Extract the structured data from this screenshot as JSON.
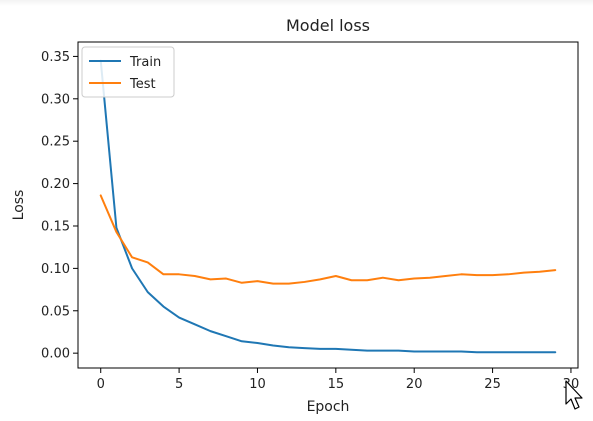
{
  "chart_data": {
    "type": "line",
    "title": "Model loss",
    "xlabel": "Epoch",
    "ylabel": "Loss",
    "xlim": [
      -1.45,
      30.45
    ],
    "ylim": [
      -0.0175,
      0.367
    ],
    "xticks": [
      0,
      5,
      10,
      15,
      20,
      25,
      30
    ],
    "xtick_labels": [
      "0",
      "5",
      "10",
      "15",
      "20",
      "25",
      "30"
    ],
    "yticks": [
      0.0,
      0.05,
      0.1,
      0.15,
      0.2,
      0.25,
      0.3,
      0.35
    ],
    "ytick_labels": [
      "0.00",
      "0.05",
      "0.10",
      "0.15",
      "0.20",
      "0.25",
      "0.30",
      "0.35"
    ],
    "grid": false,
    "legend_position": "top-left",
    "x": [
      0,
      1,
      2,
      3,
      4,
      5,
      6,
      7,
      8,
      9,
      10,
      11,
      12,
      13,
      14,
      15,
      16,
      17,
      18,
      19,
      20,
      21,
      22,
      23,
      24,
      25,
      26,
      27,
      28,
      29
    ],
    "series": [
      {
        "name": "Train",
        "color": "#1f77b4",
        "values": [
          0.345,
          0.148,
          0.1,
          0.072,
          0.055,
          0.042,
          0.034,
          0.026,
          0.02,
          0.014,
          0.012,
          0.009,
          0.007,
          0.006,
          0.005,
          0.005,
          0.004,
          0.003,
          0.003,
          0.003,
          0.002,
          0.002,
          0.002,
          0.002,
          0.001,
          0.001,
          0.001,
          0.001,
          0.001,
          0.001
        ]
      },
      {
        "name": "Test",
        "color": "#ff7f0e",
        "values": [
          0.186,
          0.143,
          0.113,
          0.107,
          0.093,
          0.093,
          0.091,
          0.087,
          0.088,
          0.083,
          0.085,
          0.082,
          0.082,
          0.084,
          0.087,
          0.091,
          0.086,
          0.086,
          0.089,
          0.086,
          0.088,
          0.089,
          0.091,
          0.093,
          0.092,
          0.092,
          0.093,
          0.095,
          0.096,
          0.098
        ]
      }
    ]
  }
}
